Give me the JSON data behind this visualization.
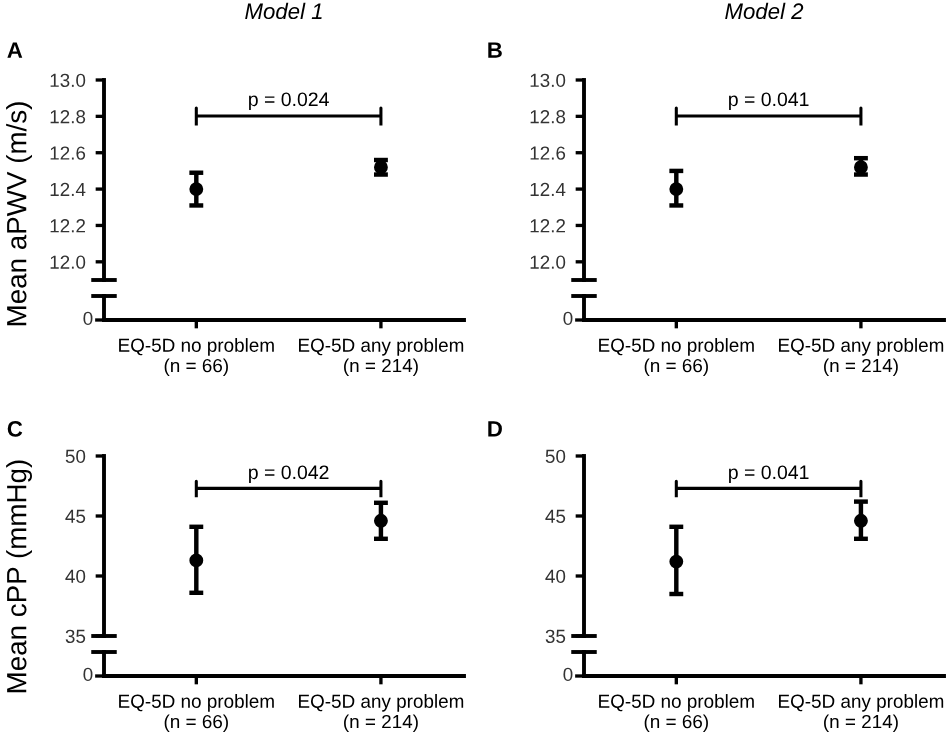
{
  "chart_data": [
    {
      "type": "scatter",
      "title": "Model 1",
      "ylabel": "Mean aPWV (m/s)",
      "annotations": [
        "A",
        "p = 0.024",
        "0"
      ],
      "categories": [
        "EQ-5D no problem\n(n = 66)",
        "EQ-5D any problem\n(n = 214)"
      ],
      "series": [
        {
          "color": "#000000",
          "values": [
            12.4,
            12.52
          ],
          "errors": [
            [
              12.31,
              12.49
            ],
            [
              12.48,
              12.56
            ]
          ]
        }
      ],
      "ylim": [
        11.9,
        13.0
      ],
      "yticks": [
        {
          "value": 12.0,
          "label": "12.0"
        },
        {
          "value": 12.2,
          "label": "12.2"
        },
        {
          "value": 12.4,
          "label": "12.4"
        },
        {
          "value": 12.6,
          "label": "12.6"
        },
        {
          "value": 12.8,
          "label": "12.8"
        },
        {
          "value": 13.0,
          "label": "13.0"
        }
      ],
      "marker": "circle",
      "legend": false
    },
    {
      "type": "scatter",
      "title": "Model 2",
      "annotations": [
        "B",
        "p = 0.041",
        "0"
      ],
      "categories": [
        "EQ-5D no problem\n(n = 66)",
        "EQ-5D any problem\n(n = 214)"
      ],
      "series": [
        {
          "color": "#000000",
          "values": [
            12.4,
            12.52
          ],
          "errors": [
            [
              12.31,
              12.5
            ],
            [
              12.48,
              12.57
            ]
          ]
        }
      ],
      "ylim": [
        11.9,
        13.0
      ],
      "yticks": [
        {
          "value": 12.0,
          "label": "12.0"
        },
        {
          "value": 12.2,
          "label": "12.2"
        },
        {
          "value": 12.4,
          "label": "12.4"
        },
        {
          "value": 12.6,
          "label": "12.6"
        },
        {
          "value": 12.8,
          "label": "12.8"
        },
        {
          "value": 13.0,
          "label": "13.0"
        }
      ],
      "marker": "circle",
      "legend": false
    },
    {
      "type": "scatter",
      "ylabel": "Mean cPP (mmHg)",
      "annotations": [
        "C",
        "p = 0.042",
        "0"
      ],
      "categories": [
        "EQ-5D no problem\n(n = 66)",
        "EQ-5D any problem\n(n = 214)"
      ],
      "series": [
        {
          "color": "#000000",
          "values": [
            41.3,
            44.6
          ],
          "errors": [
            [
              38.6,
              44.1
            ],
            [
              43.1,
              46.1
            ]
          ]
        }
      ],
      "ylim": [
        35,
        50
      ],
      "yticks": [
        35,
        40,
        45,
        50
      ],
      "marker": "circle",
      "legend": false
    },
    {
      "type": "scatter",
      "annotations": [
        "D",
        "p = 0.041",
        "0"
      ],
      "categories": [
        "EQ-5D no problem\n(n = 66)",
        "EQ-5D any problem\n(n = 214)"
      ],
      "series": [
        {
          "color": "#000000",
          "values": [
            41.2,
            44.6
          ],
          "errors": [
            [
              38.5,
              44.1
            ],
            [
              43.1,
              46.2
            ]
          ]
        }
      ],
      "ylim": [
        35,
        50
      ],
      "yticks": [
        35,
        40,
        45,
        50
      ],
      "marker": "circle",
      "legend": false
    }
  ]
}
